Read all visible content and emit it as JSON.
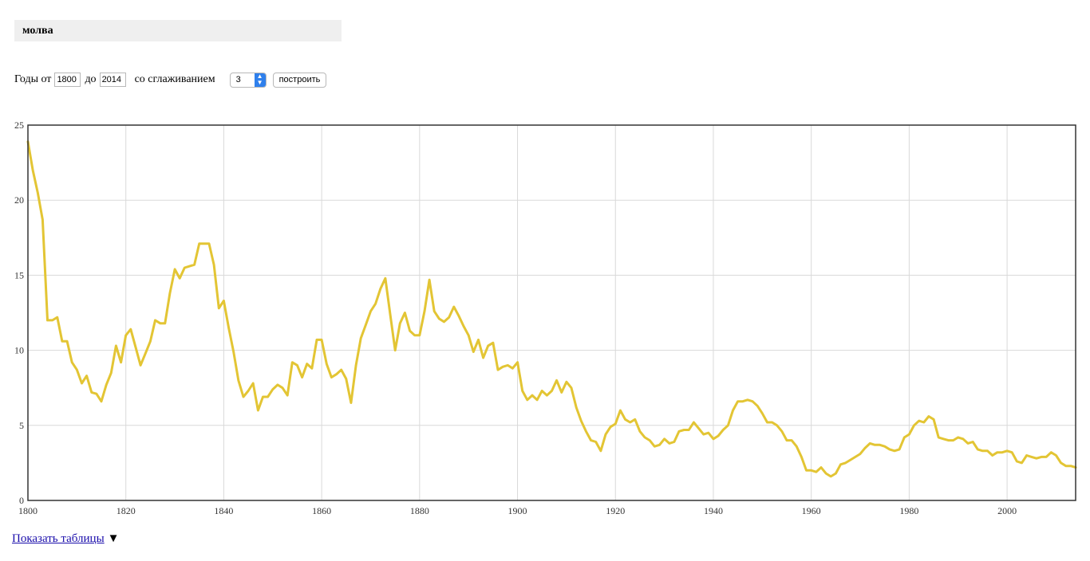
{
  "query": {
    "text": "молва"
  },
  "controls": {
    "years_from_label": "Годы от",
    "year_from": "1800",
    "to_label": "до",
    "year_to": "2014",
    "smoothing_label": "со сглаживанием",
    "smoothing_value": "3",
    "build_label": "построить"
  },
  "footer": {
    "show_tables_label": "Показать таблицы",
    "toggle_glyph": "▼"
  },
  "chart_data": {
    "type": "line",
    "title": "",
    "xlabel": "",
    "ylabel": "",
    "xlim": [
      1800,
      2014
    ],
    "ylim": [
      0,
      25
    ],
    "x_ticks": [
      1800,
      1820,
      1840,
      1860,
      1880,
      1900,
      1920,
      1940,
      1960,
      1980,
      2000
    ],
    "y_ticks": [
      0,
      5,
      10,
      15,
      20,
      25
    ],
    "grid": true,
    "legend": "none",
    "line_color": "#e3c534",
    "series": [
      {
        "x": [
          1800,
          1801,
          1802,
          1803,
          1804,
          1805,
          1806,
          1807,
          1808,
          1809,
          1810,
          1811,
          1812,
          1813,
          1814,
          1815,
          1816,
          1817,
          1818,
          1819,
          1820,
          1821,
          1822,
          1823,
          1824,
          1825,
          1826,
          1827,
          1828,
          1829,
          1830,
          1831,
          1832,
          1833,
          1834,
          1835,
          1836,
          1837,
          1838,
          1839,
          1840,
          1841,
          1842,
          1843,
          1844,
          1845,
          1846,
          1847,
          1848,
          1849,
          1850,
          1851,
          1852,
          1853,
          1854,
          1855,
          1856,
          1857,
          1858,
          1859,
          1860,
          1861,
          1862,
          1863,
          1864,
          1865,
          1866,
          1867,
          1868,
          1869,
          1870,
          1871,
          1872,
          1873,
          1874,
          1875,
          1876,
          1877,
          1878,
          1879,
          1880,
          1881,
          1882,
          1883,
          1884,
          1885,
          1886,
          1887,
          1888,
          1889,
          1890,
          1891,
          1892,
          1893,
          1894,
          1895,
          1896,
          1897,
          1898,
          1899,
          1900,
          1901,
          1902,
          1903,
          1904,
          1905,
          1906,
          1907,
          1908,
          1909,
          1910,
          1911,
          1912,
          1913,
          1914,
          1915,
          1916,
          1917,
          1918,
          1919,
          1920,
          1921,
          1922,
          1923,
          1924,
          1925,
          1926,
          1927,
          1928,
          1929,
          1930,
          1931,
          1932,
          1933,
          1934,
          1935,
          1936,
          1937,
          1938,
          1939,
          1940,
          1941,
          1942,
          1943,
          1944,
          1945,
          1946,
          1947,
          1948,
          1949,
          1950,
          1951,
          1952,
          1953,
          1954,
          1955,
          1956,
          1957,
          1958,
          1959,
          1960,
          1961,
          1962,
          1963,
          1964,
          1965,
          1966,
          1967,
          1968,
          1969,
          1970,
          1971,
          1972,
          1973,
          1974,
          1975,
          1976,
          1977,
          1978,
          1979,
          1980,
          1981,
          1982,
          1983,
          1984,
          1985,
          1986,
          1987,
          1988,
          1989,
          1990,
          1991,
          1992,
          1993,
          1994,
          1995,
          1996,
          1997,
          1998,
          1999,
          2000,
          2001,
          2002,
          2003,
          2004,
          2005,
          2006,
          2007,
          2008,
          2009,
          2010,
          2011,
          2012,
          2013,
          2014
        ],
        "values": [
          23.9,
          22.0,
          20.5,
          18.7,
          12.0,
          12.0,
          12.2,
          10.6,
          10.6,
          9.2,
          8.7,
          7.8,
          8.3,
          7.2,
          7.1,
          6.6,
          7.7,
          8.5,
          10.3,
          9.2,
          11.0,
          11.4,
          10.2,
          9.0,
          9.8,
          10.6,
          12.0,
          11.8,
          11.8,
          13.8,
          15.4,
          14.8,
          15.5,
          15.6,
          15.7,
          17.1,
          17.1,
          17.1,
          15.7,
          12.8,
          13.3,
          11.5,
          9.9,
          8.0,
          6.9,
          7.3,
          7.8,
          6.0,
          6.9,
          6.9,
          7.4,
          7.7,
          7.5,
          7.0,
          9.2,
          9.0,
          8.2,
          9.1,
          8.8,
          10.7,
          10.7,
          9.1,
          8.2,
          8.4,
          8.7,
          8.1,
          6.5,
          9.0,
          10.8,
          11.7,
          12.6,
          13.1,
          14.1,
          14.8,
          12.4,
          10.0,
          11.8,
          12.5,
          11.3,
          11.0,
          11.0,
          12.6,
          14.7,
          12.6,
          12.1,
          11.9,
          12.2,
          12.9,
          12.3,
          11.6,
          11.0,
          9.9,
          10.7,
          9.5,
          10.3,
          10.5,
          8.7,
          8.9,
          9.0,
          8.8,
          9.2,
          7.3,
          6.7,
          7.0,
          6.7,
          7.3,
          7.0,
          7.3,
          8.0,
          7.2,
          7.9,
          7.5,
          6.2,
          5.3,
          4.6,
          4.0,
          3.9,
          3.3,
          4.4,
          4.9,
          5.1,
          6.0,
          5.4,
          5.2,
          5.4,
          4.6,
          4.2,
          4.0,
          3.6,
          3.7,
          4.1,
          3.8,
          3.9,
          4.6,
          4.7,
          4.7,
          5.2,
          4.8,
          4.4,
          4.5,
          4.1,
          4.3,
          4.7,
          5.0,
          6.0,
          6.6,
          6.6,
          6.7,
          6.6,
          6.3,
          5.8,
          5.2,
          5.2,
          5.0,
          4.6,
          4.0,
          4.0,
          3.6,
          2.9,
          2.0,
          2.0,
          1.9,
          2.2,
          1.8,
          1.6,
          1.8,
          2.4,
          2.5,
          2.7,
          2.9,
          3.1,
          3.5,
          3.8,
          3.7,
          3.7,
          3.6,
          3.4,
          3.3,
          3.4,
          4.2,
          4.4,
          5.0,
          5.3,
          5.2,
          5.6,
          5.4,
          4.2,
          4.1,
          4.0,
          4.0,
          4.2,
          4.1,
          3.8,
          3.9,
          3.4,
          3.3,
          3.3,
          3.0,
          3.2,
          3.2,
          3.3,
          3.2,
          2.6,
          2.5,
          3.0,
          2.9,
          2.8,
          2.9,
          2.9,
          3.2,
          3.0,
          2.5,
          2.3,
          2.3,
          2.2
        ]
      }
    ]
  }
}
